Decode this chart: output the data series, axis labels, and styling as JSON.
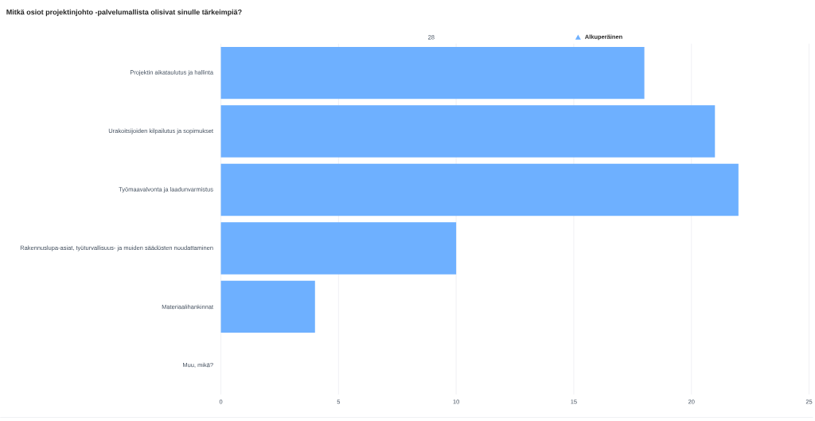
{
  "chart_data": {
    "type": "bar",
    "orientation": "horizontal",
    "title": "Mitkä osiot projektinjohto -palvelumallista olisivat sinulle tärkeimpiä?",
    "categories": [
      "Projektin aikataulutus ja hallinta",
      "Urakoitsijoiden kilpailutus ja sopimukset",
      "Työmaavalvonta ja laadunvarmistus",
      "Rakennuslupa-asiat, työturvallisuus- ja muiden säädösten noudattaminen",
      "Materiaalihankinnat",
      "Muu, mikä?"
    ],
    "series": [
      {
        "name": "Alkuperäinen",
        "color": "#6eb0ff",
        "values": [
          18,
          21,
          22,
          10,
          4,
          0
        ]
      }
    ],
    "xlim": [
      0,
      25
    ],
    "xticks": [
      0,
      5,
      10,
      15,
      20,
      25
    ],
    "grid": "x",
    "legend": "top",
    "annotations": [
      "28"
    ]
  }
}
